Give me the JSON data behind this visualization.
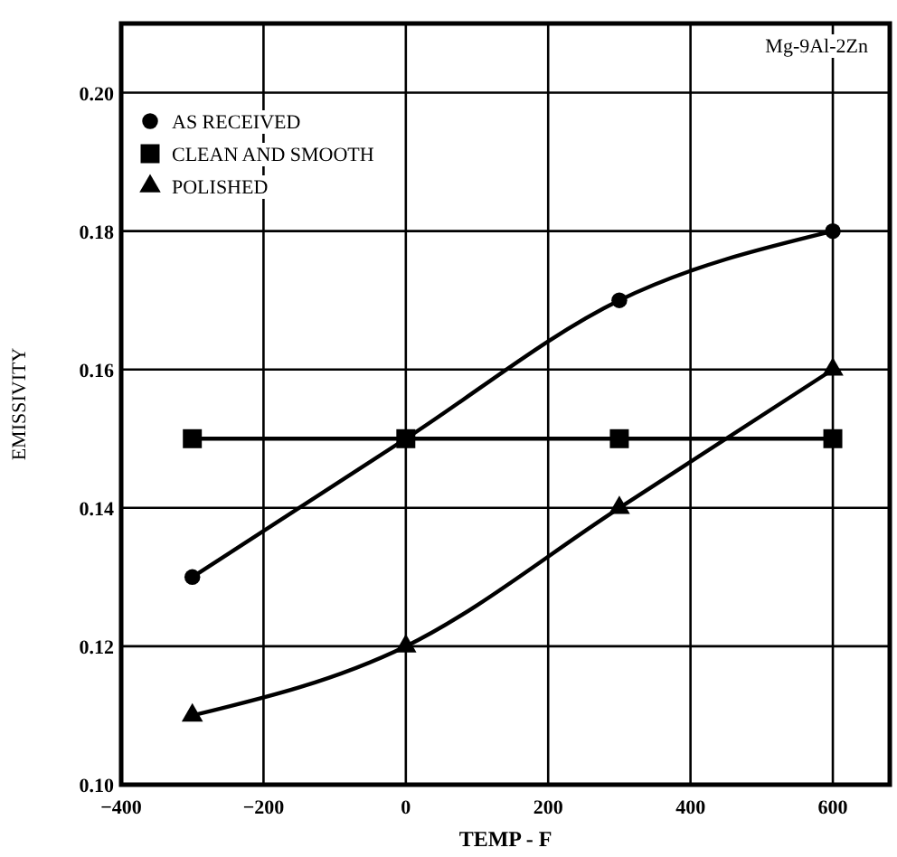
{
  "chart_data": {
    "type": "line",
    "xlabel": "TEMP - F",
    "ylabel": "EMISSIVITY",
    "annotations": [
      "Mg-9Al-2Zn"
    ],
    "x": [
      -300,
      0,
      300,
      600
    ],
    "series": [
      {
        "name": "AS RECEIVED",
        "color": "#000000",
        "marker": "circle",
        "values": [
          0.13,
          0.15,
          0.17,
          0.18
        ]
      },
      {
        "name": "CLEAN AND SMOOTH",
        "color": "#000000",
        "marker": "square",
        "values": [
          0.15,
          0.15,
          0.15,
          0.15
        ]
      },
      {
        "name": "POLISHED",
        "color": "#000000",
        "marker": "triangle",
        "values": [
          0.11,
          0.12,
          0.14,
          0.16
        ]
      }
    ],
    "xlim": [
      -400,
      680
    ],
    "xticks": [
      -400,
      -200,
      0,
      200,
      400,
      600
    ],
    "ylim": [
      0.1,
      0.21
    ],
    "yticks": [
      {
        "value": 0.1,
        "label": "0.10"
      },
      0.12,
      0.14,
      0.16,
      0.18,
      {
        "value": 0.2,
        "label": "0.20"
      }
    ],
    "grid": true,
    "legend": "top left",
    "line_style": "solid"
  }
}
